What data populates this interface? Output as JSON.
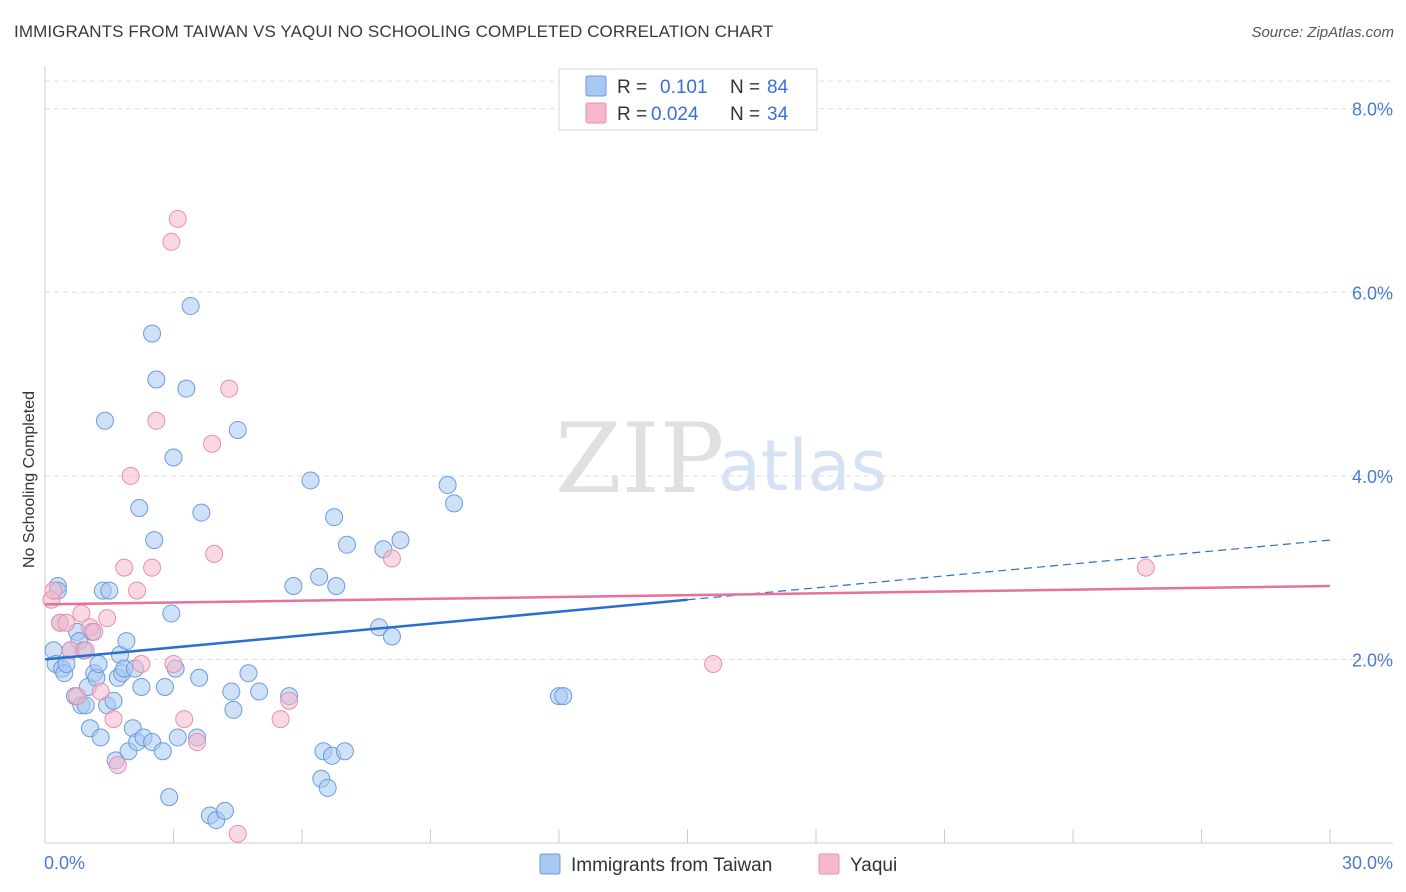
{
  "title": "IMMIGRANTS FROM TAIWAN VS YAQUI NO SCHOOLING COMPLETED CORRELATION CHART",
  "source": "Source: ZipAtlas.com",
  "watermark": {
    "zip": "ZIP",
    "atlas": "atlas"
  },
  "colors": {
    "taiwan_fill": "#a8c8f0",
    "taiwan_stroke": "#6a9be0",
    "taiwan_line": "#2a6fd0",
    "yaqui_fill": "#f6b8cc",
    "yaqui_stroke": "#e890ac",
    "yaqui_line": "#e8709a",
    "grid": "#dcdcdc",
    "tick_text": "#4a7bd0"
  },
  "legend": {
    "r_label": "R =",
    "n_label": "N =",
    "taiwan": {
      "r": "0.101",
      "n": "84"
    },
    "yaqui": {
      "r": "0.024",
      "n": "34"
    }
  },
  "bottom_legend": [
    "Immigrants from Taiwan",
    "Yaqui"
  ],
  "chart_data": {
    "type": "scatter",
    "title": "IMMIGRANTS FROM TAIWAN VS YAQUI NO SCHOOLING COMPLETED CORRELATION CHART",
    "xlabel": "",
    "ylabel": "No Schooling Completed",
    "xlim": [
      0,
      30
    ],
    "ylim": [
      0,
      8.4
    ],
    "x_tick_labels": [
      "0.0%",
      "30.0%"
    ],
    "y_ticks": [
      2,
      4,
      6,
      8
    ],
    "y_tick_labels": [
      "2.0%",
      "4.0%",
      "6.0%",
      "8.0%"
    ],
    "grid": true,
    "series": [
      {
        "name": "Immigrants from Taiwan",
        "trend": {
          "x0": 0,
          "y0": 2.0,
          "x1": 30,
          "y1": 3.3,
          "solid_until": 15
        },
        "points": [
          [
            0.2,
            2.1
          ],
          [
            0.25,
            1.95
          ],
          [
            0.3,
            2.8
          ],
          [
            0.35,
            2.4
          ],
          [
            0.4,
            1.9
          ],
          [
            0.45,
            1.85
          ],
          [
            0.5,
            1.95
          ],
          [
            0.6,
            2.1
          ],
          [
            0.7,
            1.6
          ],
          [
            0.75,
            2.3
          ],
          [
            0.8,
            2.2
          ],
          [
            0.85,
            1.5
          ],
          [
            0.9,
            2.1
          ],
          [
            0.95,
            1.5
          ],
          [
            1.0,
            1.7
          ],
          [
            1.05,
            1.25
          ],
          [
            1.1,
            2.3
          ],
          [
            1.15,
            1.85
          ],
          [
            1.2,
            1.8
          ],
          [
            1.25,
            1.95
          ],
          [
            1.3,
            1.15
          ],
          [
            1.35,
            2.75
          ],
          [
            1.4,
            4.6
          ],
          [
            1.45,
            1.5
          ],
          [
            1.5,
            2.75
          ],
          [
            1.6,
            1.55
          ],
          [
            1.65,
            0.9
          ],
          [
            1.7,
            1.8
          ],
          [
            1.75,
            2.05
          ],
          [
            1.8,
            1.85
          ],
          [
            1.85,
            1.9
          ],
          [
            1.9,
            2.2
          ],
          [
            1.95,
            1.0
          ],
          [
            2.05,
            1.25
          ],
          [
            2.1,
            1.9
          ],
          [
            2.15,
            1.1
          ],
          [
            2.2,
            3.65
          ],
          [
            2.25,
            1.7
          ],
          [
            2.3,
            1.15
          ],
          [
            2.5,
            1.1
          ],
          [
            2.5,
            5.55
          ],
          [
            2.55,
            3.3
          ],
          [
            2.6,
            5.05
          ],
          [
            2.75,
            1.0
          ],
          [
            2.8,
            1.7
          ],
          [
            2.9,
            0.5
          ],
          [
            2.95,
            2.5
          ],
          [
            3.0,
            4.2
          ],
          [
            3.05,
            1.9
          ],
          [
            3.1,
            1.15
          ],
          [
            3.3,
            4.95
          ],
          [
            3.4,
            5.85
          ],
          [
            3.55,
            1.15
          ],
          [
            3.6,
            1.8
          ],
          [
            3.65,
            3.6
          ],
          [
            3.85,
            0.3
          ],
          [
            4.0,
            0.25
          ],
          [
            4.2,
            0.35
          ],
          [
            4.35,
            1.65
          ],
          [
            4.4,
            1.45
          ],
          [
            4.5,
            4.5
          ],
          [
            4.75,
            1.85
          ],
          [
            5.0,
            1.65
          ],
          [
            5.7,
            1.6
          ],
          [
            5.8,
            2.8
          ],
          [
            6.2,
            3.95
          ],
          [
            6.4,
            2.9
          ],
          [
            6.45,
            0.7
          ],
          [
            6.5,
            1.0
          ],
          [
            6.6,
            0.6
          ],
          [
            6.7,
            0.95
          ],
          [
            6.75,
            3.55
          ],
          [
            6.8,
            2.8
          ],
          [
            7.0,
            1.0
          ],
          [
            7.05,
            3.25
          ],
          [
            7.8,
            2.35
          ],
          [
            7.9,
            3.2
          ],
          [
            8.1,
            2.25
          ],
          [
            8.3,
            3.3
          ],
          [
            9.4,
            3.9
          ],
          [
            9.55,
            3.7
          ],
          [
            12.0,
            1.6
          ],
          [
            12.1,
            1.6
          ],
          [
            0.3,
            2.75
          ]
        ]
      },
      {
        "name": "Yaqui",
        "trend": {
          "x0": 0,
          "y0": 2.6,
          "x1": 30,
          "y1": 2.8
        },
        "points": [
          [
            0.15,
            2.65
          ],
          [
            0.2,
            2.75
          ],
          [
            0.35,
            2.4
          ],
          [
            0.5,
            2.4
          ],
          [
            0.6,
            2.1
          ],
          [
            0.75,
            1.6
          ],
          [
            0.85,
            2.5
          ],
          [
            0.95,
            2.1
          ],
          [
            1.05,
            2.35
          ],
          [
            1.15,
            2.3
          ],
          [
            1.3,
            1.65
          ],
          [
            1.45,
            2.45
          ],
          [
            1.6,
            1.35
          ],
          [
            1.7,
            0.85
          ],
          [
            1.85,
            3.0
          ],
          [
            2.0,
            4.0
          ],
          [
            2.15,
            2.75
          ],
          [
            2.25,
            1.95
          ],
          [
            2.5,
            3.0
          ],
          [
            2.6,
            4.6
          ],
          [
            2.95,
            6.55
          ],
          [
            3.0,
            1.95
          ],
          [
            3.1,
            6.8
          ],
          [
            3.25,
            1.35
          ],
          [
            3.55,
            1.1
          ],
          [
            3.9,
            4.35
          ],
          [
            3.95,
            3.15
          ],
          [
            4.3,
            4.95
          ],
          [
            4.5,
            0.1
          ],
          [
            5.5,
            1.35
          ],
          [
            5.7,
            1.55
          ],
          [
            8.1,
            3.1
          ],
          [
            15.6,
            1.95
          ],
          [
            25.7,
            3.0
          ]
        ]
      }
    ]
  }
}
